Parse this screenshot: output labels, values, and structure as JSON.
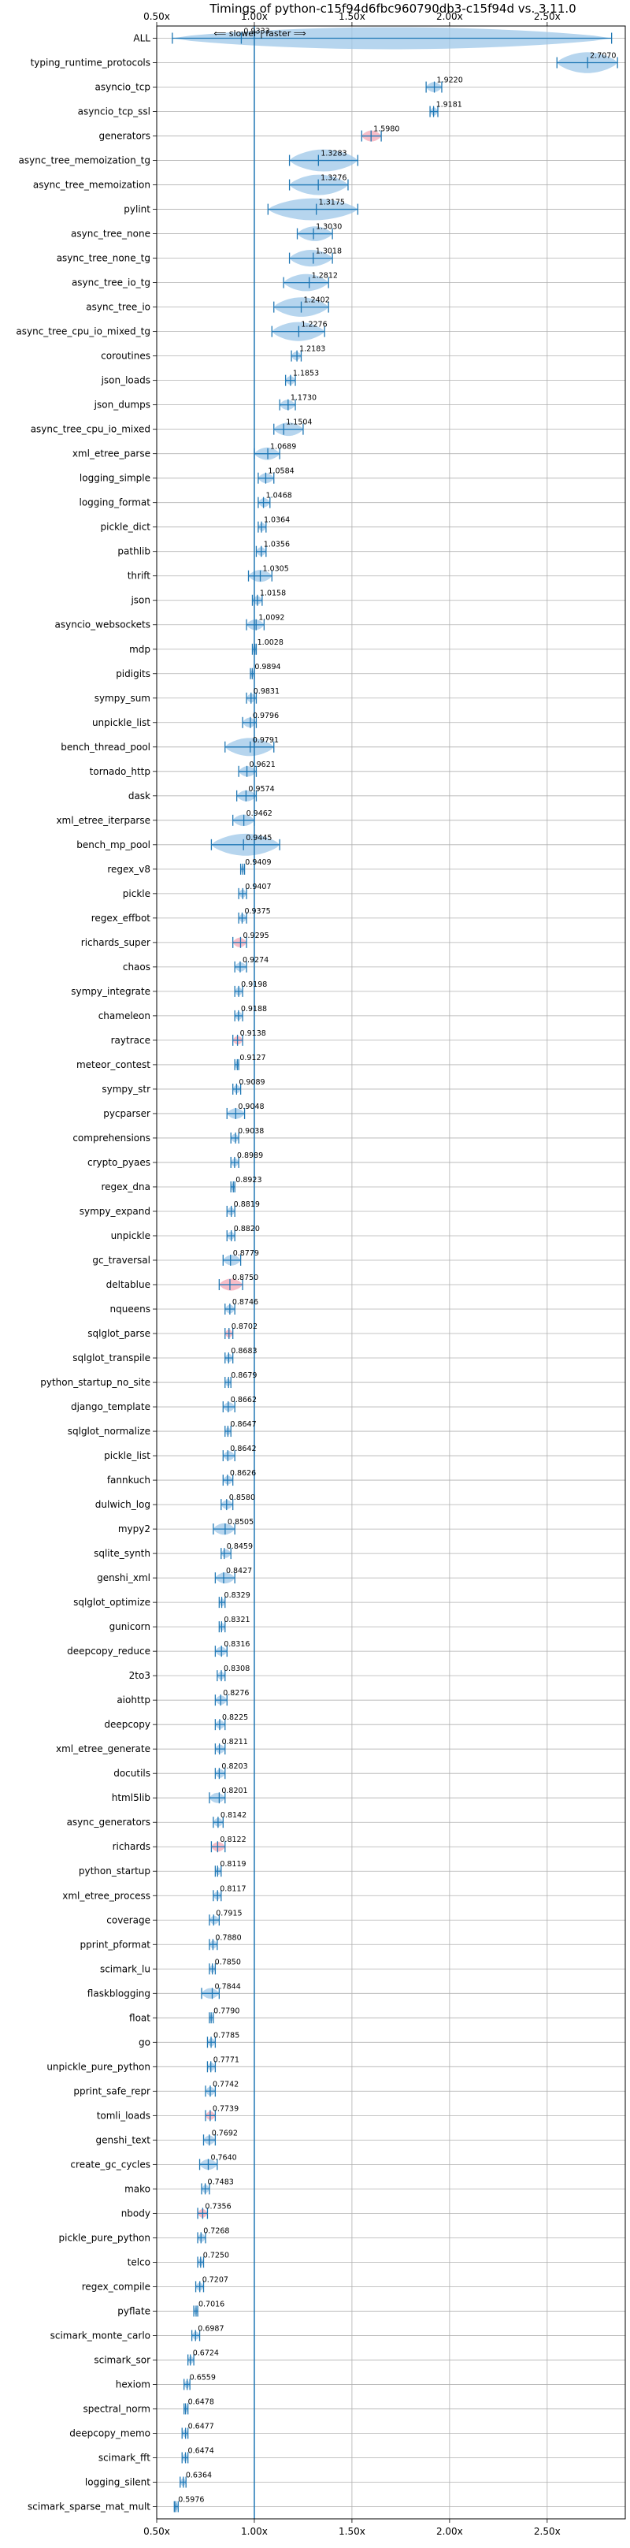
{
  "chart_data": {
    "type": "violin",
    "title": "Timings of python-c15f94d6fbc960790db3-c15f94d vs. 3.11.0",
    "annotation": "⟸ slower | faster ⟹",
    "xlim": [
      0.5,
      2.9
    ],
    "xticks": [
      0.5,
      1.0,
      1.5,
      2.0,
      2.5
    ],
    "xtick_labels": [
      "0.50x",
      "1.00x",
      "1.50x",
      "2.00x",
      "2.50x"
    ],
    "reference_line": 1.0,
    "grid": true,
    "colors": {
      "violin": "#9ec7e8",
      "violin_regressed": "#f4a7b6",
      "line": "#1f77b4",
      "grid": "#b0b0b0",
      "text": "#000000"
    },
    "categories": [
      "ALL",
      "typing_runtime_protocols",
      "asyncio_tcp",
      "asyncio_tcp_ssl",
      "generators",
      "async_tree_memoization_tg",
      "async_tree_memoization",
      "pylint",
      "async_tree_none",
      "async_tree_none_tg",
      "async_tree_io_tg",
      "async_tree_io",
      "async_tree_cpu_io_mixed_tg",
      "coroutines",
      "json_loads",
      "json_dumps",
      "async_tree_cpu_io_mixed",
      "xml_etree_parse",
      "logging_simple",
      "logging_format",
      "pickle_dict",
      "pathlib",
      "thrift",
      "json",
      "asyncio_websockets",
      "mdp",
      "pidigits",
      "sympy_sum",
      "unpickle_list",
      "bench_thread_pool",
      "tornado_http",
      "dask",
      "xml_etree_iterparse",
      "bench_mp_pool",
      "regex_v8",
      "pickle",
      "regex_effbot",
      "richards_super",
      "chaos",
      "sympy_integrate",
      "chameleon",
      "raytrace",
      "meteor_contest",
      "sympy_str",
      "pycparser",
      "comprehensions",
      "crypto_pyaes",
      "regex_dna",
      "sympy_expand",
      "unpickle",
      "gc_traversal",
      "deltablue",
      "nqueens",
      "sqlglot_parse",
      "sqlglot_transpile",
      "python_startup_no_site",
      "django_template",
      "sqlglot_normalize",
      "pickle_list",
      "fannkuch",
      "dulwich_log",
      "mypy2",
      "sqlite_synth",
      "genshi_xml",
      "sqlglot_optimize",
      "gunicorn",
      "deepcopy_reduce",
      "2to3",
      "aiohttp",
      "deepcopy",
      "xml_etree_generate",
      "docutils",
      "html5lib",
      "async_generators",
      "richards",
      "python_startup",
      "xml_etree_process",
      "coverage",
      "pprint_pformat",
      "scimark_lu",
      "flaskblogging",
      "float",
      "go",
      "unpickle_pure_python",
      "pprint_safe_repr",
      "tomli_loads",
      "genshi_text",
      "create_gc_cycles",
      "mako",
      "nbody",
      "pickle_pure_python",
      "telco",
      "regex_compile",
      "pyflate",
      "scimark_monte_carlo",
      "scimark_sor",
      "hexiom",
      "spectral_norm",
      "deepcopy_memo",
      "scimark_fft",
      "logging_silent",
      "scimark_sparse_mat_mult"
    ],
    "values": [
      0.9333,
      2.707,
      1.922,
      1.9181,
      1.598,
      1.3283,
      1.3276,
      1.3175,
      1.303,
      1.3018,
      1.2812,
      1.2402,
      1.2276,
      1.2183,
      1.1853,
      1.173,
      1.1504,
      1.0689,
      1.0584,
      1.0468,
      1.0364,
      1.0356,
      1.0305,
      1.0158,
      1.0092,
      1.0028,
      0.9894,
      0.9831,
      0.9796,
      0.9791,
      0.9621,
      0.9574,
      0.9462,
      0.9445,
      0.9409,
      0.9407,
      0.9375,
      0.9295,
      0.9274,
      0.9198,
      0.9188,
      0.9138,
      0.9127,
      0.9089,
      0.9048,
      0.9038,
      0.8989,
      0.8923,
      0.8819,
      0.882,
      0.8779,
      0.875,
      0.8746,
      0.8702,
      0.8683,
      0.8679,
      0.8662,
      0.8647,
      0.8642,
      0.8626,
      0.858,
      0.8505,
      0.8459,
      0.8427,
      0.8329,
      0.8321,
      0.8316,
      0.8308,
      0.8276,
      0.8225,
      0.8211,
      0.8203,
      0.8201,
      0.8142,
      0.8122,
      0.8119,
      0.8117,
      0.7915,
      0.788,
      0.785,
      0.7844,
      0.779,
      0.7785,
      0.7771,
      0.7742,
      0.7739,
      0.7692,
      0.764,
      0.7483,
      0.7356,
      0.7268,
      0.725,
      0.7207,
      0.7016,
      0.6987,
      0.6724,
      0.6559,
      0.6478,
      0.6477,
      0.6474,
      0.6364,
      0.5976
    ],
    "labeled_values": [
      "0.9333",
      "2.7070",
      "1.9220",
      "1.9181",
      "1.5980",
      "1.3283",
      "1.3276",
      "1.3175",
      "1.3030",
      "1.3018",
      "1.2812",
      "1.2402",
      "1.2276",
      "1.2183",
      "1.1853",
      "1.1730",
      "1.1504",
      "1.0689",
      "1.0584",
      "1.0468",
      "1.0364",
      "1.0356",
      "1.0305",
      "1.0158",
      "1.0092",
      "1.0028",
      "0.9894",
      "0.9831",
      "0.9796",
      "0.9791",
      "0.9621",
      "0.9574",
      "0.9462",
      "0.9445",
      "0.9409",
      "0.9407",
      "0.9375",
      "0.9295",
      "0.9274",
      "0.9198",
      "0.9188",
      "0.9138",
      "0.9127",
      "0.9089",
      "0.9048",
      "0.9038",
      "0.8989",
      "0.8923",
      "0.8819",
      "0.8820",
      "0.8779",
      "0.8750",
      "0.8746",
      "0.8702",
      "0.8683",
      "0.8679",
      "0.8662",
      "0.8647",
      "0.8642",
      "0.8626",
      "0.8580",
      "0.8505",
      "0.8459",
      "0.8427",
      "0.8329",
      "0.8321",
      "0.8316",
      "0.8308",
      "0.8276",
      "0.8225",
      "0.8211",
      "0.8203",
      "0.8201",
      "0.8142",
      "0.8122",
      "0.8119",
      "0.8117",
      "0.7915",
      "0.7880",
      "0.7850",
      "0.7844",
      "0.7790",
      "0.7785",
      "0.7771",
      "0.7742",
      "0.7739",
      "0.7692",
      "0.7640",
      "0.7483",
      "0.7356",
      "0.7268",
      "0.7250",
      "0.7207",
      "0.7016",
      "0.6987",
      "0.6724",
      "0.6559",
      "0.6478",
      "0.6477",
      "0.6474",
      "0.6364",
      "0.5976"
    ],
    "ranges": [
      [
        0.58,
        2.83
      ],
      [
        2.55,
        2.86
      ],
      [
        1.88,
        1.96
      ],
      [
        1.9,
        1.94
      ],
      [
        1.55,
        1.65
      ],
      [
        1.18,
        1.53
      ],
      [
        1.18,
        1.48
      ],
      [
        1.07,
        1.53
      ],
      [
        1.22,
        1.4
      ],
      [
        1.18,
        1.4
      ],
      [
        1.15,
        1.38
      ],
      [
        1.1,
        1.38
      ],
      [
        1.09,
        1.36
      ],
      [
        1.19,
        1.24
      ],
      [
        1.16,
        1.21
      ],
      [
        1.13,
        1.21
      ],
      [
        1.1,
        1.25
      ],
      [
        1.0,
        1.13
      ],
      [
        1.02,
        1.1
      ],
      [
        1.02,
        1.08
      ],
      [
        1.02,
        1.06
      ],
      [
        1.01,
        1.06
      ],
      [
        0.97,
        1.09
      ],
      [
        0.99,
        1.04
      ],
      [
        0.96,
        1.05
      ],
      [
        0.99,
        1.01
      ],
      [
        0.98,
        1.0
      ],
      [
        0.96,
        1.01
      ],
      [
        0.94,
        1.01
      ],
      [
        0.85,
        1.1
      ],
      [
        0.92,
        1.01
      ],
      [
        0.91,
        1.01
      ],
      [
        0.89,
        1.0
      ],
      [
        0.78,
        1.13
      ],
      [
        0.93,
        0.95
      ],
      [
        0.92,
        0.96
      ],
      [
        0.92,
        0.96
      ],
      [
        0.89,
        0.96
      ],
      [
        0.9,
        0.96
      ],
      [
        0.9,
        0.94
      ],
      [
        0.9,
        0.94
      ],
      [
        0.89,
        0.94
      ],
      [
        0.9,
        0.92
      ],
      [
        0.89,
        0.93
      ],
      [
        0.86,
        0.95
      ],
      [
        0.88,
        0.92
      ],
      [
        0.88,
        0.92
      ],
      [
        0.88,
        0.9
      ],
      [
        0.86,
        0.9
      ],
      [
        0.86,
        0.9
      ],
      [
        0.84,
        0.93
      ],
      [
        0.82,
        0.94
      ],
      [
        0.85,
        0.9
      ],
      [
        0.85,
        0.89
      ],
      [
        0.85,
        0.89
      ],
      [
        0.85,
        0.88
      ],
      [
        0.84,
        0.9
      ],
      [
        0.85,
        0.88
      ],
      [
        0.84,
        0.9
      ],
      [
        0.84,
        0.89
      ],
      [
        0.83,
        0.89
      ],
      [
        0.79,
        0.9
      ],
      [
        0.83,
        0.88
      ],
      [
        0.8,
        0.9
      ],
      [
        0.82,
        0.85
      ],
      [
        0.82,
        0.85
      ],
      [
        0.8,
        0.86
      ],
      [
        0.81,
        0.85
      ],
      [
        0.8,
        0.86
      ],
      [
        0.8,
        0.85
      ],
      [
        0.8,
        0.85
      ],
      [
        0.8,
        0.85
      ],
      [
        0.77,
        0.85
      ],
      [
        0.79,
        0.84
      ],
      [
        0.78,
        0.85
      ],
      [
        0.8,
        0.83
      ],
      [
        0.79,
        0.83
      ],
      [
        0.77,
        0.82
      ],
      [
        0.77,
        0.81
      ],
      [
        0.77,
        0.8
      ],
      [
        0.73,
        0.82
      ],
      [
        0.77,
        0.79
      ],
      [
        0.76,
        0.8
      ],
      [
        0.76,
        0.8
      ],
      [
        0.75,
        0.8
      ],
      [
        0.75,
        0.8
      ],
      [
        0.74,
        0.8
      ],
      [
        0.72,
        0.81
      ],
      [
        0.73,
        0.77
      ],
      [
        0.71,
        0.76
      ],
      [
        0.71,
        0.75
      ],
      [
        0.71,
        0.74
      ],
      [
        0.7,
        0.74
      ],
      [
        0.69,
        0.71
      ],
      [
        0.68,
        0.72
      ],
      [
        0.66,
        0.69
      ],
      [
        0.64,
        0.67
      ],
      [
        0.64,
        0.66
      ],
      [
        0.63,
        0.66
      ],
      [
        0.63,
        0.66
      ],
      [
        0.62,
        0.65
      ],
      [
        0.59,
        0.61
      ]
    ],
    "regressed": [
      "generators",
      "richards_super",
      "raytrace",
      "deltablue",
      "sqlglot_parse",
      "richards",
      "tomli_loads",
      "nbody"
    ]
  }
}
